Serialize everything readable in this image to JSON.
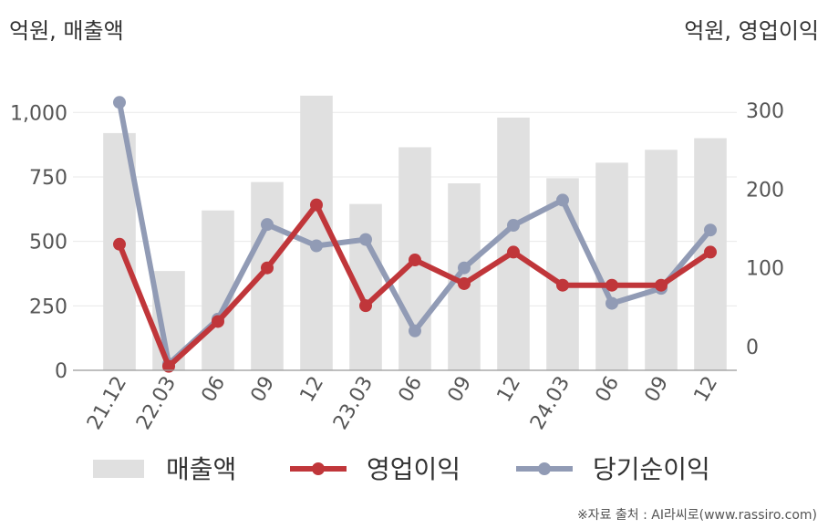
{
  "left_axis_unit": "억원, 매출액",
  "right_axis_unit": "억원, 영업이익",
  "source": "※자료 출처 : AI라씨로(www.rassiro.com)",
  "colors": {
    "bar": "#e0e0e0",
    "operating": "#c0363a",
    "net": "#919bb5",
    "grid": "#e8e8e8",
    "text": "#555555"
  },
  "chart_data": {
    "type": "bar",
    "categories": [
      "21.12",
      "22.03",
      "06",
      "09",
      "12",
      "23.03",
      "06",
      "09",
      "12",
      "24.03",
      "06",
      "09",
      "12"
    ],
    "left_ylim": [
      0,
      1100
    ],
    "left_ticks": [
      0,
      250,
      500,
      750,
      "1,000"
    ],
    "right_ylim": [
      -30,
      330
    ],
    "right_ticks": [
      0,
      100,
      200,
      300
    ],
    "series": [
      {
        "name": "매출액",
        "type": "bar",
        "axis": "left",
        "values": [
          920,
          385,
          620,
          730,
          1065,
          645,
          865,
          725,
          980,
          745,
          805,
          855,
          900
        ]
      },
      {
        "name": "영업이익",
        "type": "line",
        "axis": "right",
        "values": [
          130,
          -25,
          32,
          100,
          180,
          52,
          110,
          80,
          120,
          78,
          78,
          78,
          120
        ]
      },
      {
        "name": "당기순이익",
        "type": "line",
        "axis": "right",
        "values": [
          310,
          -22,
          35,
          155,
          128,
          136,
          20,
          100,
          154,
          186,
          55,
          74,
          148
        ]
      }
    ]
  }
}
